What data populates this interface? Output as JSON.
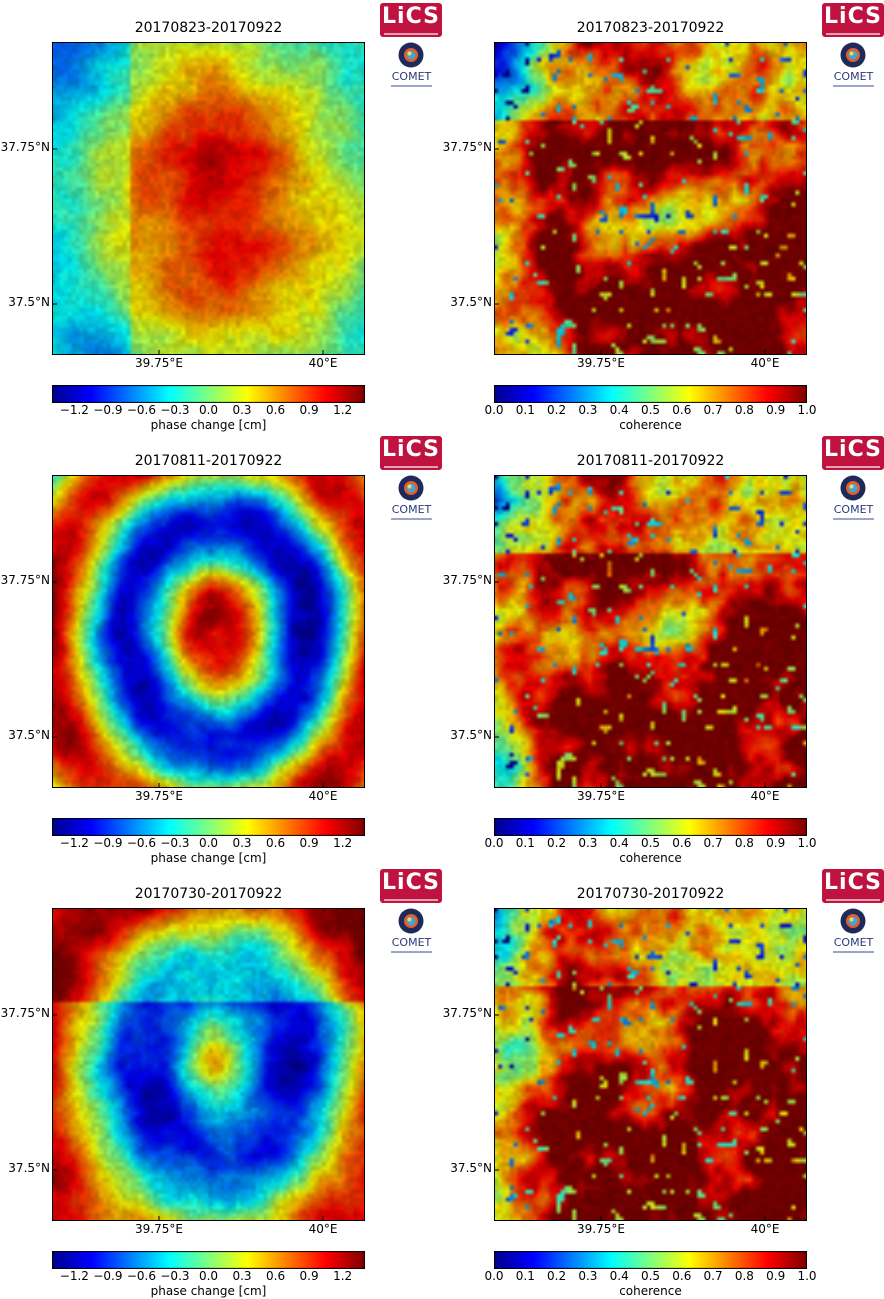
{
  "chart_data": [
    {
      "type": "heatmap",
      "title": "20170823-20170922",
      "variable": "phase",
      "colorbar_label": "phase change [cm]",
      "colorbar_ticks": [
        "−1.2",
        "−0.9",
        "−0.6",
        "−0.3",
        "0.0",
        "0.3",
        "0.6",
        "0.9",
        "1.2"
      ],
      "colorbar_range": [
        -1.4,
        1.4
      ],
      "colormap": "jet",
      "y_ticks": [
        "37.75°N",
        "37.5°N"
      ],
      "x_ticks": [
        "39.75°E",
        "40°E"
      ]
    },
    {
      "type": "heatmap",
      "title": "20170823-20170922",
      "variable": "coherence",
      "colorbar_label": "coherence",
      "colorbar_ticks": [
        "0.0",
        "0.1",
        "0.2",
        "0.3",
        "0.4",
        "0.5",
        "0.6",
        "0.7",
        "0.8",
        "0.9",
        "1.0"
      ],
      "colorbar_range": [
        0,
        1
      ],
      "colormap": "jet",
      "y_ticks": [
        "37.75°N",
        "37.5°N"
      ],
      "x_ticks": [
        "39.75°E",
        "40°E"
      ]
    },
    {
      "type": "heatmap",
      "title": "20170811-20170922",
      "variable": "phase",
      "colorbar_label": "phase change [cm]",
      "colorbar_ticks": [
        "−1.2",
        "−0.9",
        "−0.6",
        "−0.3",
        "0.0",
        "0.3",
        "0.6",
        "0.9",
        "1.2"
      ],
      "colorbar_range": [
        -1.4,
        1.4
      ],
      "colormap": "jet",
      "y_ticks": [
        "37.75°N",
        "37.5°N"
      ],
      "x_ticks": [
        "39.75°E",
        "40°E"
      ]
    },
    {
      "type": "heatmap",
      "title": "20170811-20170922",
      "variable": "coherence",
      "colorbar_label": "coherence",
      "colorbar_ticks": [
        "0.0",
        "0.1",
        "0.2",
        "0.3",
        "0.4",
        "0.5",
        "0.6",
        "0.7",
        "0.8",
        "0.9",
        "1.0"
      ],
      "colorbar_range": [
        0,
        1
      ],
      "colormap": "jet",
      "y_ticks": [
        "37.75°N",
        "37.5°N"
      ],
      "x_ticks": [
        "39.75°E",
        "40°E"
      ]
    },
    {
      "type": "heatmap",
      "title": "20170730-20170922",
      "variable": "phase",
      "colorbar_label": "phase change [cm]",
      "colorbar_ticks": [
        "−1.2",
        "−0.9",
        "−0.6",
        "−0.3",
        "0.0",
        "0.3",
        "0.6",
        "0.9",
        "1.2"
      ],
      "colorbar_range": [
        -1.4,
        1.4
      ],
      "colormap": "jet",
      "y_ticks": [
        "37.75°N",
        "37.5°N"
      ],
      "x_ticks": [
        "39.75°E",
        "40°E"
      ]
    },
    {
      "type": "heatmap",
      "title": "20170730-20170922",
      "variable": "coherence",
      "colorbar_label": "coherence",
      "colorbar_ticks": [
        "0.0",
        "0.1",
        "0.2",
        "0.3",
        "0.4",
        "0.5",
        "0.6",
        "0.7",
        "0.8",
        "0.9",
        "1.0"
      ],
      "colorbar_range": [
        0,
        1
      ],
      "colormap": "jet",
      "y_ticks": [
        "37.75°N",
        "37.5°N"
      ],
      "x_ticks": [
        "39.75°E",
        "40°E"
      ]
    }
  ],
  "logos": {
    "lics_text": "LiCS",
    "comet_text": "COMET"
  },
  "colors": {
    "lics_brand": "#c0123f",
    "comet_brand": "#2a3a7a",
    "colormap": [
      "#00008f",
      "#0000ff",
      "#007fff",
      "#00ffff",
      "#7fff7f",
      "#ffff00",
      "#ff7f00",
      "#ff0000",
      "#7f0000"
    ]
  }
}
